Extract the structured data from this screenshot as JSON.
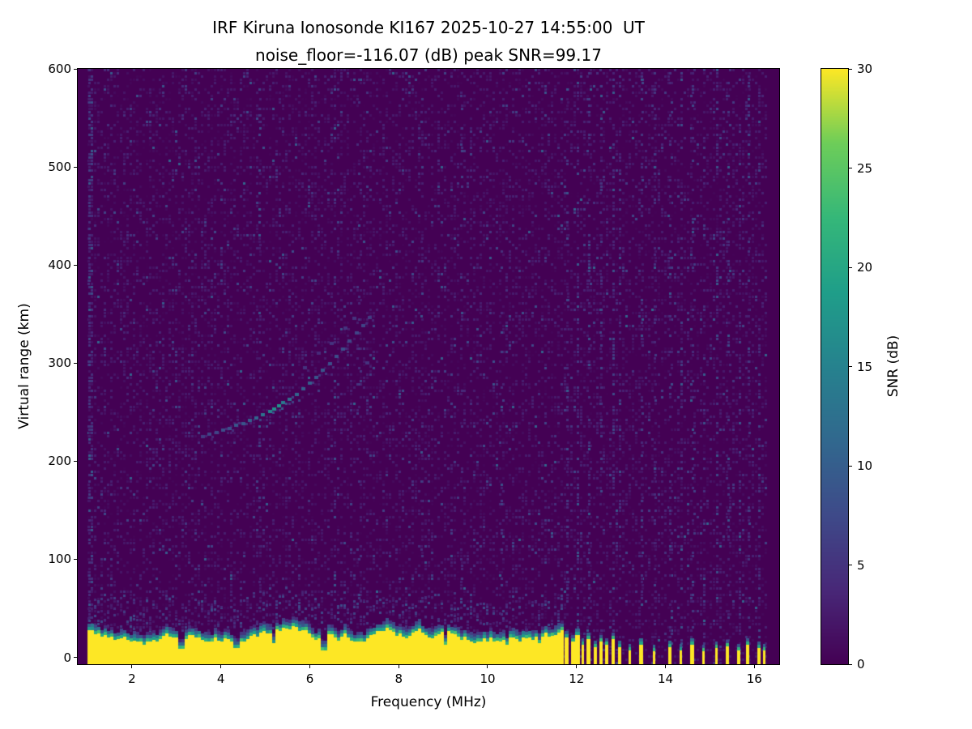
{
  "chart_data": {
    "type": "heatmap",
    "title": "IRF Kiruna Ionosonde KI167 2025-10-27 14:55:00  UT",
    "subtitle": "noise_floor=-116.07 (dB) peak SNR=99.17",
    "station": "IRF Kiruna Ionosonde KI167",
    "timestamp_ut": "2025-10-27 14:55:00 UT",
    "noise_floor_db": -116.07,
    "peak_snr_db": 99.17,
    "xlabel": "Frequency (MHz)",
    "ylabel": "Virtual range (km)",
    "xlim": [
      0.78,
      16.56
    ],
    "ylim": [
      -7,
      600
    ],
    "xticks": [
      2,
      4,
      6,
      8,
      10,
      12,
      14,
      16
    ],
    "yticks": [
      0,
      100,
      200,
      300,
      400,
      500,
      600
    ],
    "grid": false,
    "colorbar": {
      "label": "SNR (dB)",
      "ticks": [
        0,
        5,
        10,
        15,
        20,
        25,
        30
      ],
      "vmin": 0,
      "vmax": 30,
      "colormap": "viridis"
    },
    "colors": {
      "background_min": "#440154",
      "peak_max": "#fde725"
    },
    "features": {
      "data_freq_range": [
        1.0,
        16.3
      ],
      "ground_clutter": {
        "freq_range": [
          1.0,
          11.65
        ],
        "top_km_base": 26,
        "top_km_range": [
          16,
          36
        ],
        "notches": [
          [
            2.25,
            0.08,
            12
          ],
          [
            3.08,
            0.12,
            8
          ],
          [
            4.33,
            0.12,
            9
          ],
          [
            5.15,
            0.06,
            14
          ],
          [
            6.3,
            0.14,
            7
          ],
          [
            7.45,
            0.06,
            13
          ],
          [
            9.0,
            0.08,
            12
          ],
          [
            9.65,
            0.06,
            14
          ],
          [
            10.4,
            0.07,
            12
          ],
          [
            11.1,
            0.06,
            14
          ]
        ]
      },
      "rfi_stripes": [
        [
          11.78,
          0.07,
          20
        ],
        [
          11.92,
          0.06,
          16
        ],
        [
          12.02,
          0.08,
          22
        ],
        [
          12.14,
          0.05,
          12
        ],
        [
          12.27,
          0.07,
          18
        ],
        [
          12.42,
          0.05,
          10
        ],
        [
          12.55,
          0.07,
          16
        ],
        [
          12.68,
          0.05,
          12
        ],
        [
          12.82,
          0.06,
          18
        ],
        [
          12.97,
          0.05,
          10
        ],
        [
          13.2,
          0.04,
          7
        ],
        [
          13.45,
          0.07,
          12
        ],
        [
          13.75,
          0.04,
          6
        ],
        [
          14.1,
          0.06,
          10
        ],
        [
          14.35,
          0.04,
          7
        ],
        [
          14.6,
          0.07,
          12
        ],
        [
          14.85,
          0.04,
          6
        ],
        [
          15.15,
          0.05,
          9
        ],
        [
          15.4,
          0.06,
          11
        ],
        [
          15.65,
          0.04,
          7
        ],
        [
          15.85,
          0.07,
          12
        ],
        [
          16.1,
          0.05,
          9
        ],
        [
          16.22,
          0.04,
          7
        ]
      ],
      "noise_columns": [
        [
          1.02,
          0.55
        ],
        [
          1.08,
          0.4
        ],
        [
          4.85,
          0.1
        ],
        [
          6.55,
          0.1
        ],
        [
          7.1,
          0.12
        ],
        [
          8.5,
          0.1
        ],
        [
          9.4,
          0.1
        ],
        [
          10.3,
          0.08
        ],
        [
          11.78,
          0.3
        ],
        [
          12.02,
          0.3
        ],
        [
          12.27,
          0.28
        ],
        [
          12.55,
          0.25
        ],
        [
          12.82,
          0.25
        ],
        [
          12.97,
          0.2
        ],
        [
          13.45,
          0.25
        ],
        [
          13.75,
          0.2
        ],
        [
          14.1,
          0.25
        ],
        [
          14.35,
          0.18
        ],
        [
          14.6,
          0.25
        ],
        [
          14.85,
          0.18
        ],
        [
          15.15,
          0.2
        ],
        [
          15.4,
          0.22
        ],
        [
          15.65,
          0.18
        ],
        [
          15.85,
          0.25
        ],
        [
          16.1,
          0.2
        ]
      ],
      "echo_trace": [
        [
          3.6,
          225,
          6
        ],
        [
          3.75,
          227,
          7
        ],
        [
          3.9,
          229,
          7
        ],
        [
          4.05,
          231,
          8
        ],
        [
          4.2,
          233,
          8
        ],
        [
          4.35,
          236,
          9
        ],
        [
          4.5,
          238,
          9
        ],
        [
          4.65,
          241,
          10
        ],
        [
          4.8,
          244,
          11
        ],
        [
          4.95,
          247,
          13
        ],
        [
          5.1,
          250,
          15
        ],
        [
          5.2,
          253,
          17
        ],
        [
          5.3,
          256,
          17
        ],
        [
          5.4,
          259,
          14
        ],
        [
          5.55,
          263,
          12
        ],
        [
          5.7,
          268,
          11
        ],
        [
          5.85,
          273,
          10
        ],
        [
          6.0,
          279,
          10
        ],
        [
          6.15,
          285,
          9
        ],
        [
          6.3,
          292,
          9
        ],
        [
          6.45,
          299,
          8
        ],
        [
          6.6,
          306,
          8
        ],
        [
          6.75,
          314,
          8
        ],
        [
          6.9,
          322,
          7
        ],
        [
          7.05,
          330,
          7
        ],
        [
          7.2,
          338,
          7
        ],
        [
          7.35,
          346,
          6
        ],
        [
          5.9,
          295,
          5
        ],
        [
          6.2,
          310,
          4
        ],
        [
          6.5,
          320,
          5
        ],
        [
          6.8,
          335,
          5
        ],
        [
          7.0,
          345,
          5
        ],
        [
          7.3,
          300,
          5
        ]
      ],
      "background_speckle": {
        "density": 0.33,
        "snr_max": 11
      }
    }
  }
}
